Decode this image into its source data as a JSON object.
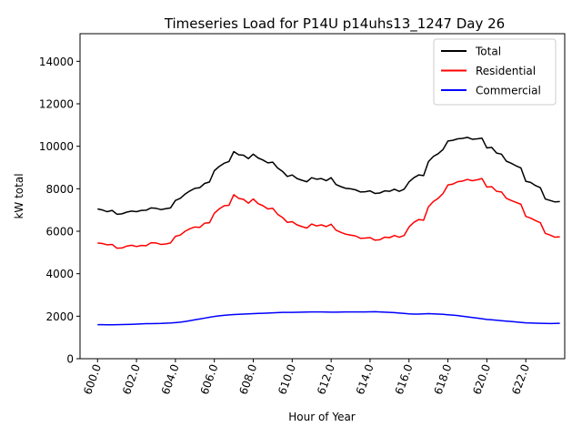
{
  "chart_data": {
    "type": "line",
    "title": "Timeseries Load for P14U p14uhs13_1247  Day 26",
    "xlabel": "Hour of Year",
    "ylabel": "kW total",
    "xlim": [
      599.1,
      624.0
    ],
    "ylim": [
      0,
      15300
    ],
    "xticks": [
      600,
      602,
      604,
      606,
      608,
      610,
      612,
      614,
      616,
      618,
      620,
      622
    ],
    "xtick_labels": [
      "600.0",
      "602.0",
      "604.0",
      "606.0",
      "608.0",
      "610.0",
      "612.0",
      "614.0",
      "616.0",
      "618.0",
      "620.0",
      "622.0"
    ],
    "yticks": [
      0,
      2000,
      4000,
      6000,
      8000,
      10000,
      12000,
      14000
    ],
    "ytick_labels": [
      "0",
      "2000",
      "4000",
      "6000",
      "8000",
      "10000",
      "12000",
      "14000"
    ],
    "legend_position": "top-right",
    "x": [
      600,
      600.25,
      600.5,
      600.75,
      601,
      601.25,
      601.5,
      601.75,
      602,
      602.25,
      602.5,
      602.75,
      603,
      603.25,
      603.5,
      603.75,
      604,
      604.25,
      604.5,
      604.75,
      605,
      605.25,
      605.5,
      605.75,
      606,
      606.25,
      606.5,
      606.75,
      607,
      607.25,
      607.5,
      607.75,
      608,
      608.25,
      608.5,
      608.75,
      609,
      609.25,
      609.5,
      609.75,
      610,
      610.25,
      610.5,
      610.75,
      611,
      611.25,
      611.5,
      611.75,
      612,
      612.25,
      612.5,
      612.75,
      613,
      613.25,
      613.5,
      613.75,
      614,
      614.25,
      614.5,
      614.75,
      615,
      615.25,
      615.5,
      615.75,
      616,
      616.25,
      616.5,
      616.75,
      617,
      617.25,
      617.5,
      617.75,
      618,
      618.25,
      618.5,
      618.75,
      619,
      619.25,
      619.5,
      619.75,
      620,
      620.25,
      620.5,
      620.75,
      621,
      621.25,
      621.5,
      621.75,
      622,
      622.25,
      622.5,
      622.75,
      623,
      623.25,
      623.5,
      623.75
    ],
    "series": [
      {
        "name": "Total",
        "color": "#000000",
        "values": [
          7050,
          7000,
          6920,
          6980,
          6800,
          6820,
          6900,
          6950,
          6920,
          6980,
          6990,
          7100,
          7080,
          7020,
          7060,
          7100,
          7450,
          7550,
          7750,
          7900,
          8020,
          8050,
          8250,
          8320,
          8850,
          9050,
          9200,
          9280,
          9750,
          9600,
          9580,
          9420,
          9630,
          9450,
          9350,
          9220,
          9250,
          8980,
          8820,
          8580,
          8650,
          8480,
          8400,
          8330,
          8520,
          8450,
          8480,
          8380,
          8520,
          8200,
          8100,
          8020,
          8000,
          7950,
          7850,
          7860,
          7900,
          7780,
          7800,
          7900,
          7880,
          7980,
          7880,
          7980,
          8320,
          8520,
          8650,
          8620,
          9280,
          9520,
          9650,
          9850,
          10250,
          10280,
          10350,
          10370,
          10420,
          10330,
          10350,
          10380,
          9920,
          9950,
          9680,
          9630,
          9300,
          9200,
          9080,
          8980,
          8350,
          8300,
          8150,
          8050,
          7520,
          7450,
          7380,
          7400
        ]
      },
      {
        "name": "Residential",
        "color": "#ff0000",
        "values": [
          5450,
          5420,
          5360,
          5380,
          5200,
          5210,
          5300,
          5340,
          5280,
          5330,
          5320,
          5460,
          5450,
          5380,
          5400,
          5450,
          5760,
          5820,
          6000,
          6120,
          6200,
          6180,
          6380,
          6400,
          6850,
          7050,
          7200,
          7220,
          7720,
          7550,
          7500,
          7320,
          7520,
          7300,
          7200,
          7050,
          7080,
          6800,
          6650,
          6420,
          6450,
          6300,
          6220,
          6150,
          6340,
          6250,
          6300,
          6220,
          6330,
          6050,
          5950,
          5860,
          5820,
          5780,
          5670,
          5680,
          5700,
          5580,
          5600,
          5720,
          5700,
          5800,
          5720,
          5800,
          6200,
          6420,
          6550,
          6520,
          7150,
          7400,
          7550,
          7780,
          8180,
          8220,
          8330,
          8360,
          8440,
          8380,
          8420,
          8480,
          8080,
          8100,
          7880,
          7850,
          7550,
          7450,
          7360,
          7270,
          6700,
          6620,
          6500,
          6400,
          5900,
          5820,
          5720,
          5740
        ]
      },
      {
        "name": "Commercial",
        "color": "#0000ff",
        "values": [
          1600,
          1600,
          1595,
          1595,
          1600,
          1605,
          1610,
          1620,
          1630,
          1640,
          1650,
          1650,
          1655,
          1660,
          1670,
          1680,
          1700,
          1720,
          1750,
          1790,
          1830,
          1870,
          1910,
          1950,
          1990,
          2020,
          2040,
          2060,
          2080,
          2090,
          2100,
          2110,
          2120,
          2130,
          2140,
          2150,
          2160,
          2170,
          2180,
          2180,
          2180,
          2185,
          2190,
          2195,
          2200,
          2200,
          2200,
          2195,
          2190,
          2190,
          2195,
          2200,
          2200,
          2200,
          2200,
          2200,
          2205,
          2210,
          2200,
          2190,
          2180,
          2170,
          2150,
          2130,
          2110,
          2100,
          2100,
          2110,
          2120,
          2110,
          2100,
          2090,
          2070,
          2050,
          2030,
          2000,
          1970,
          1940,
          1910,
          1880,
          1850,
          1830,
          1810,
          1790,
          1770,
          1750,
          1730,
          1710,
          1690,
          1680,
          1670,
          1665,
          1660,
          1655,
          1660,
          1665
        ]
      }
    ]
  }
}
